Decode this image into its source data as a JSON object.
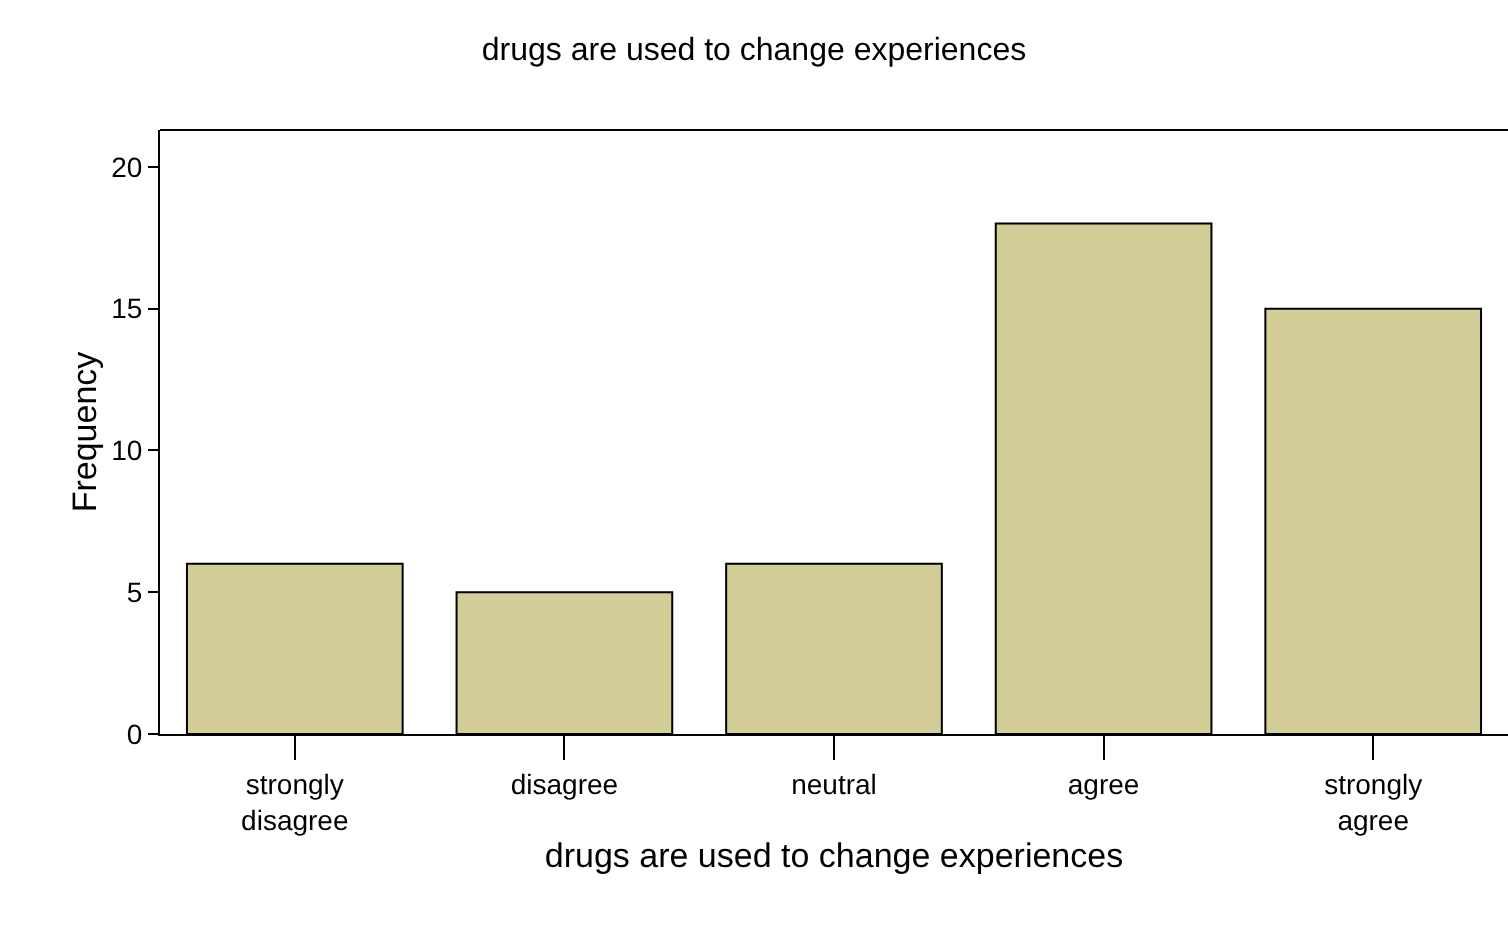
{
  "chart_data": {
    "type": "bar",
    "title": "drugs are used to change experiences",
    "xlabel": "drugs are used to change experiences",
    "ylabel": "Frequency",
    "categories": [
      "strongly\ndisagree",
      "disagree",
      "neutral",
      "agree",
      "strongly\nagree"
    ],
    "values": [
      6,
      5,
      6,
      18,
      15
    ],
    "color": "#d3ce97",
    "ylim": [
      0,
      21.3
    ],
    "yticks": [
      0,
      5,
      10,
      15,
      20
    ]
  }
}
